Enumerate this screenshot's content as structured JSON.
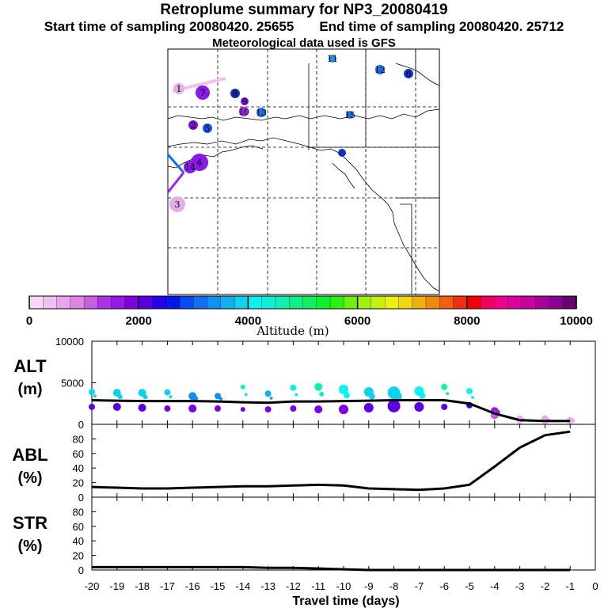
{
  "titles": {
    "main": "Retroplume summary for NP3_20080419",
    "start": "Start time of sampling 20080420. 25655",
    "end": "End time of sampling 20080420. 25712",
    "met": "Meteorological data used is GFS"
  },
  "map": {
    "markers": [
      {
        "label": "1",
        "color": "#e6aee6",
        "size": 7
      },
      {
        "label": "2",
        "color": "#7d10e0",
        "size": 6
      },
      {
        "label": "3",
        "color": "#e6aee6",
        "size": 10
      },
      {
        "label": "4",
        "color": "#8a18e8",
        "size": 11
      },
      {
        "label": "5",
        "color": "#1a50e8",
        "size": 6
      },
      {
        "label": "6",
        "color": "#1a38d8",
        "size": 6
      },
      {
        "label": "7",
        "color": "#8a18e8",
        "size": 9
      },
      {
        "label": "8",
        "color": "#1430c0",
        "size": 6
      },
      {
        "label": "9",
        "color": "#7d10e0",
        "size": 5
      },
      {
        "label": "10",
        "color": "#a020f0",
        "size": 6
      },
      {
        "label": "11",
        "color": "#1a90f0",
        "size": 5
      },
      {
        "label": "12",
        "color": "#1a70e8",
        "size": 6
      },
      {
        "label": "13",
        "color": "#1a70e8",
        "size": 6
      },
      {
        "label": "14",
        "color": "#8a18e8",
        "size": 8
      },
      {
        "label": "15",
        "color": "#1a70e8",
        "size": 5
      }
    ]
  },
  "colorbar": {
    "title": "Altitude (m)",
    "ticks": [
      "0",
      "2000",
      "4000",
      "6000",
      "8000",
      "10000"
    ],
    "colors": [
      "#f6d8f6",
      "#f0c0f0",
      "#e8a4ea",
      "#dc86e4",
      "#c860de",
      "#b030e6",
      "#9818e8",
      "#7d00e0",
      "#5a00e0",
      "#2a00e8",
      "#0018f0",
      "#0848f0",
      "#1070f0",
      "#1090f0",
      "#10b0f0",
      "#10d0f0",
      "#10f0f0",
      "#10f0d8",
      "#10f0b0",
      "#10f088",
      "#10f060",
      "#10f030",
      "#30f010",
      "#70f010",
      "#a0f010",
      "#c8f010",
      "#f0f010",
      "#f0d810",
      "#f0b010",
      "#f08810",
      "#f06010",
      "#f03010",
      "#f00000",
      "#f00060",
      "#f0008c",
      "#e000a0",
      "#c800a0",
      "#a8009c",
      "#880090",
      "#680070"
    ]
  },
  "chart_data": [
    {
      "type": "scatter+line",
      "panel": "ALT",
      "ylabel": "ALT",
      "yunit": "(m)",
      "ylim": [
        0,
        10000
      ],
      "yticks": [
        0,
        5000,
        10000
      ],
      "xlim": [
        -20,
        0
      ],
      "x": [
        -20,
        -19,
        -18,
        -17,
        -16,
        -15,
        -14,
        -13,
        -12,
        -11,
        -10,
        -9,
        -8,
        -7,
        -6,
        -5,
        -4,
        -3,
        -2,
        -1
      ],
      "line": [
        2900,
        2850,
        2800,
        2800,
        2800,
        2750,
        2650,
        2600,
        2750,
        2750,
        2800,
        2850,
        2900,
        2900,
        2900,
        2500,
        1300,
        500,
        400,
        400
      ],
      "upper": [
        3900,
        3800,
        3800,
        3850,
        3400,
        3400,
        4500,
        3700,
        4400,
        4500,
        4200,
        3900,
        3800,
        4000,
        4500,
        4000,
        1600,
        700,
        700,
        500
      ],
      "lower": [
        2100,
        2100,
        2000,
        1900,
        1900,
        1900,
        1800,
        1800,
        1900,
        1800,
        1800,
        2000,
        2200,
        2100,
        2100,
        2300,
        1100,
        400,
        300,
        300
      ],
      "sizes": [
        4,
        5,
        5,
        4,
        5,
        4,
        3,
        4,
        4,
        5,
        6,
        6,
        8,
        6,
        4,
        4,
        5,
        4,
        4,
        4
      ]
    },
    {
      "type": "line",
      "panel": "ABL",
      "ylabel": "ABL",
      "yunit": "(%)",
      "ylim": [
        0,
        100
      ],
      "yticks": [
        0,
        20,
        40,
        60,
        80
      ],
      "x": [
        -20,
        -19,
        -18,
        -17,
        -16,
        -15,
        -14,
        -13,
        -12,
        -11,
        -10,
        -9,
        -8,
        -7,
        -6,
        -5,
        -4,
        -3,
        -2,
        -1
      ],
      "values": [
        14,
        13,
        12,
        12,
        13,
        14,
        15,
        15,
        16,
        17,
        16,
        12,
        11,
        10,
        12,
        17,
        42,
        68,
        85,
        90
      ]
    },
    {
      "type": "line",
      "panel": "STR",
      "ylabel": "STR",
      "yunit": "(%)",
      "ylim": [
        0,
        100
      ],
      "yticks": [
        0,
        20,
        40,
        60,
        80
      ],
      "x": [
        -20,
        -19,
        -18,
        -17,
        -16,
        -15,
        -14,
        -13,
        -12,
        -11,
        -10,
        -9,
        -8,
        -7,
        -6,
        -5,
        -4,
        -3,
        -2,
        -1
      ],
      "values": [
        4,
        4,
        4,
        4,
        4,
        4,
        4,
        3,
        3,
        2,
        1,
        0,
        0,
        0,
        0,
        0,
        0,
        0,
        0,
        0
      ]
    }
  ],
  "xaxis": {
    "title": "Travel time (days)",
    "ticks": [
      "-20",
      "-19",
      "-18",
      "-17",
      "-16",
      "-15",
      "-14",
      "-13",
      "-12",
      "-11",
      "-10",
      "-9",
      "-8",
      "-7",
      "-6",
      "-5",
      "-4",
      "-3",
      "-2",
      "-1",
      "0"
    ]
  }
}
